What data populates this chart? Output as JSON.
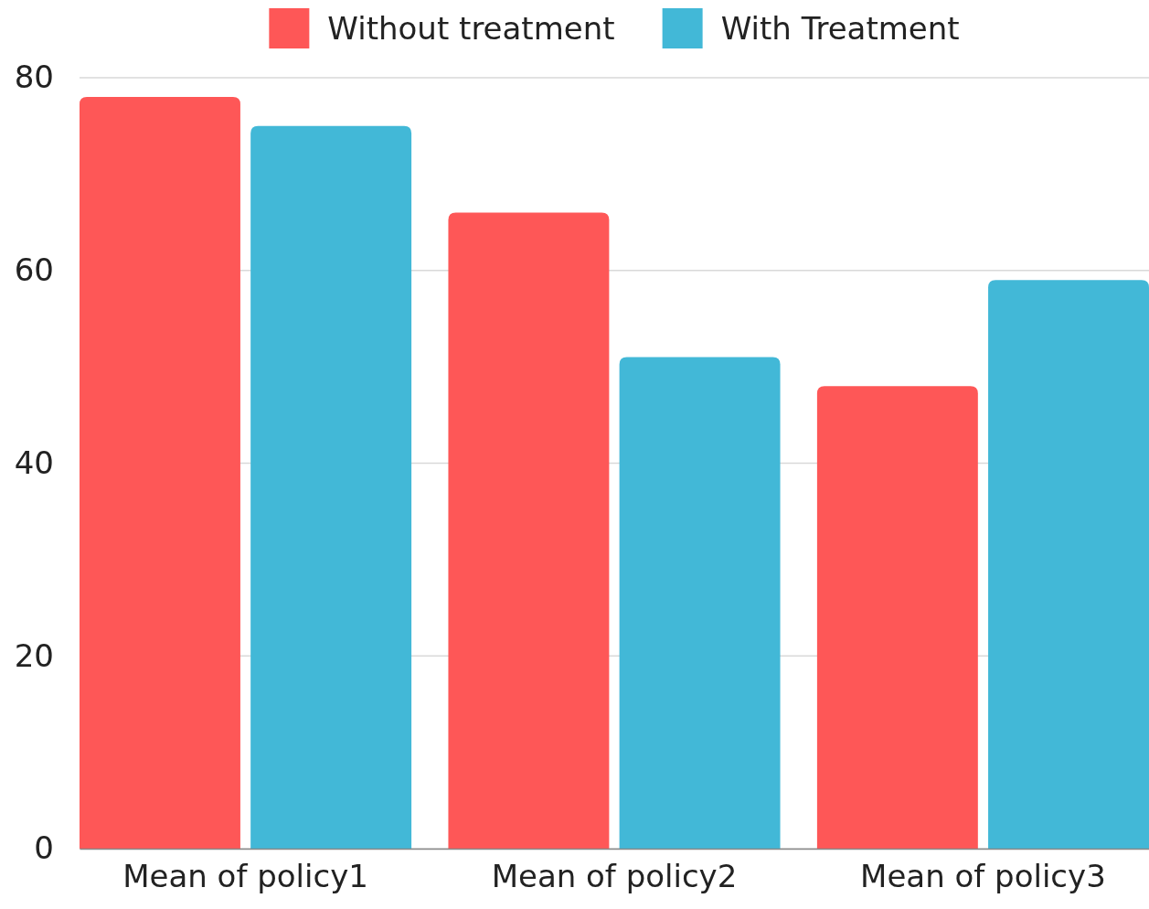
{
  "chart_data": {
    "type": "bar",
    "categories": [
      "Mean of policy1",
      "Mean of policy2",
      "Mean of policy3"
    ],
    "series": [
      {
        "name": "Without treatment",
        "color": "#fe5757",
        "values": [
          78,
          66,
          48
        ]
      },
      {
        "name": "With Treatment",
        "color": "#42b8d7",
        "values": [
          75,
          51,
          59
        ]
      }
    ],
    "ylim": [
      0,
      80
    ],
    "yticks": [
      0,
      20,
      40,
      60,
      80
    ],
    "grid": "y",
    "legend": "top"
  }
}
